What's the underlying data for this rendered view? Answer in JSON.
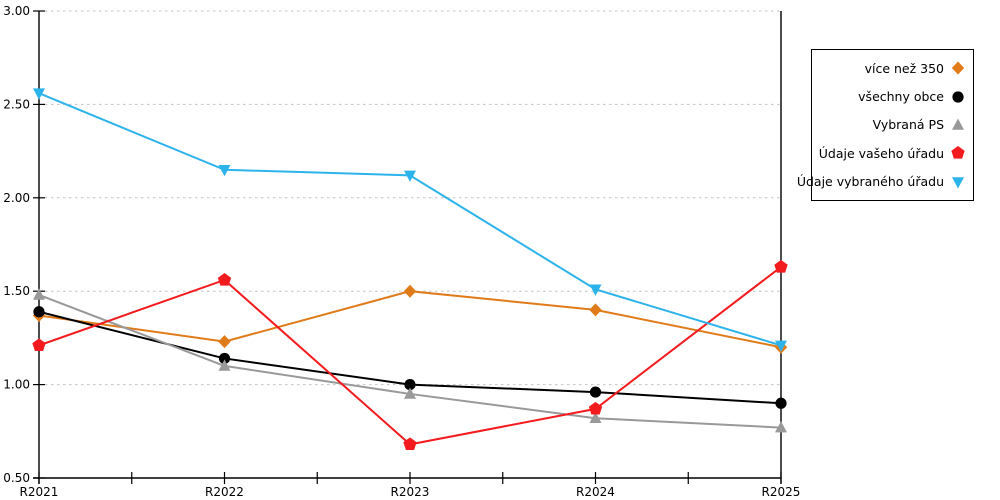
{
  "chart_data": {
    "type": "line",
    "title": "",
    "xlabel": "",
    "ylabel": "",
    "categories": [
      "R2021",
      "R2022",
      "R2023",
      "R2024",
      "R2025"
    ],
    "series": [
      {
        "name": "více než 350",
        "color": "#e07b1a",
        "marker": "diamond",
        "values": [
          1.37,
          1.23,
          1.5,
          1.4,
          1.2
        ]
      },
      {
        "name": "všechny obce",
        "color": "#000000",
        "marker": "circle",
        "values": [
          1.39,
          1.14,
          1.0,
          0.96,
          0.9
        ]
      },
      {
        "name": "Vybraná PS",
        "color": "#999999",
        "marker": "triangle-up",
        "values": [
          1.48,
          1.1,
          0.95,
          0.82,
          0.77
        ]
      },
      {
        "name": "Údaje vašeho úřadu",
        "color": "#f41b1e",
        "marker": "pentagon",
        "values": [
          1.21,
          1.56,
          0.68,
          0.87,
          1.63
        ]
      },
      {
        "name": "Údaje vybraného úřadu",
        "color": "#2db3eb",
        "marker": "triangle-down",
        "values": [
          2.56,
          2.15,
          2.12,
          1.51,
          1.21
        ]
      }
    ],
    "ylim": [
      0.5,
      3.0
    ],
    "ytick_values": [
      0.5,
      1.0,
      1.5,
      2.0,
      2.5,
      3.0
    ],
    "ytick_labels": [
      "0.50",
      "1.00",
      "1.50",
      "2.00",
      "2.50",
      "3.00"
    ],
    "x_minor_ticks_between_categories": true,
    "grid": "horizontal-dashed",
    "gridline_color": "#c3c3c3",
    "axis_color": "#000000",
    "legend_position": "right"
  }
}
